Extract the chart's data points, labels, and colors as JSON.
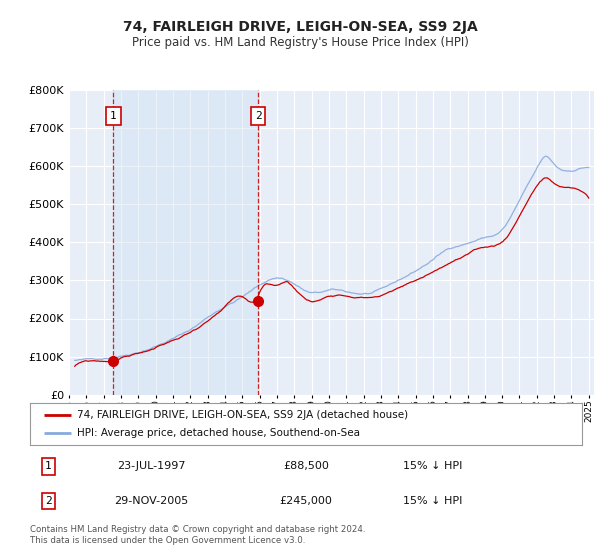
{
  "title": "74, FAIRLEIGH DRIVE, LEIGH-ON-SEA, SS9 2JA",
  "subtitle": "Price paid vs. HM Land Registry's House Price Index (HPI)",
  "sale1_date_num": 1997.56,
  "sale1_price": 88500,
  "sale2_date_num": 2005.91,
  "sale2_price": 245000,
  "sale1_info": "23-JUL-1997",
  "sale1_amount": "£88,500",
  "sale1_hpi": "15% ↓ HPI",
  "sale2_info": "29-NOV-2005",
  "sale2_amount": "£245,000",
  "sale2_hpi": "15% ↓ HPI",
  "legend_line1": "74, FAIRLEIGH DRIVE, LEIGH-ON-SEA, SS9 2JA (detached house)",
  "legend_line2": "HPI: Average price, detached house, Southend-on-Sea",
  "footer": "Contains HM Land Registry data © Crown copyright and database right 2024.\nThis data is licensed under the Open Government Licence v3.0.",
  "red_color": "#cc0000",
  "blue_color": "#88aadd",
  "shade_color": "#ddeeff",
  "grid_color": "#ffffff",
  "plot_bg": "#e8eef8",
  "fig_bg": "#ffffff",
  "ylim": [
    0,
    800000
  ],
  "xlim_start": 1995.3,
  "xlim_end": 2025.3
}
